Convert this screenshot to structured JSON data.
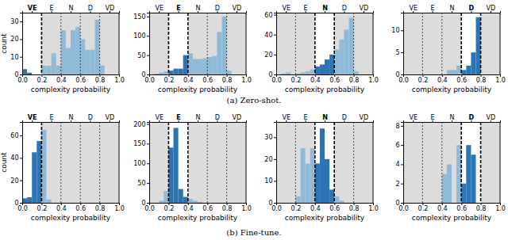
{
  "chart_data": [
    {
      "type": "histogram",
      "highlight": "VE",
      "xlabel": "complexity probability",
      "ylabel": "count",
      "bins": [
        0,
        0.05,
        0.1,
        0.15,
        0.2,
        0.25,
        0.3,
        0.35,
        0.4,
        0.45,
        0.5,
        0.55,
        0.6,
        0.65,
        0.7,
        0.75,
        0.8,
        0.85,
        0.9,
        0.95,
        1
      ],
      "values": [
        3,
        1,
        0,
        0,
        5,
        5,
        12,
        5,
        25,
        15,
        25,
        27,
        20,
        14,
        14,
        31,
        5,
        0,
        0,
        0
      ],
      "colors": [
        "#2a76b4",
        "#2a76b4",
        "#2a76b4",
        "#2a76b4",
        "#8fbbd9",
        "#8fbbd9",
        "#8fbbd9",
        "#8fbbd9",
        "#8fbbd9",
        "#8fbbd9",
        "#8fbbd9",
        "#8fbbd9",
        "#8fbbd9",
        "#8fbbd9",
        "#8fbbd9",
        "#8fbbd9",
        "#8fbbd9",
        "#8fbbd9",
        "#8fbbd9",
        "#8fbbd9"
      ],
      "xlim": [
        0,
        1
      ],
      "xticks": [
        {
          "value": 0,
          "label": "0.0"
        },
        0.2,
        0.4,
        0.6,
        0.8,
        {
          "value": 1,
          "label": "1.0"
        }
      ],
      "ylim": [
        0,
        35
      ],
      "yticks": [
        0,
        10,
        20,
        30
      ],
      "x2ticks": [
        {
          "value": 0.1,
          "label": "VE"
        },
        {
          "value": 0.3,
          "label": "E"
        },
        {
          "value": 0.5,
          "label": "N"
        },
        {
          "value": 0.7,
          "label": "D"
        },
        {
          "value": 0.9,
          "label": "VD"
        }
      ],
      "boundaries": [
        0.2,
        0.4,
        0.6,
        0.8
      ]
    },
    {
      "type": "histogram",
      "highlight": "E",
      "xlabel": "complexity probability",
      "bins": [
        0,
        0.05,
        0.1,
        0.15,
        0.2,
        0.25,
        0.3,
        0.35,
        0.4,
        0.45,
        0.5,
        0.55,
        0.6,
        0.65,
        0.7,
        0.75,
        0.8,
        0.85,
        0.9,
        0.95,
        1
      ],
      "values": [
        0,
        2,
        5,
        8,
        10,
        15,
        15,
        50,
        55,
        40,
        40,
        42,
        45,
        48,
        110,
        150,
        10,
        0,
        0,
        0
      ],
      "colors": [
        "#8fbbd9",
        "#8fbbd9",
        "#8fbbd9",
        "#8fbbd9",
        "#2a76b4",
        "#2a76b4",
        "#2a76b4",
        "#2a76b4",
        "#8fbbd9",
        "#8fbbd9",
        "#8fbbd9",
        "#8fbbd9",
        "#8fbbd9",
        "#8fbbd9",
        "#8fbbd9",
        "#8fbbd9",
        "#8fbbd9",
        "#8fbbd9",
        "#8fbbd9",
        "#8fbbd9"
      ],
      "xlim": [
        0,
        1
      ],
      "xticks": [
        {
          "value": 0,
          "label": "0.0"
        },
        0.2,
        0.4,
        0.6,
        0.8,
        {
          "value": 1,
          "label": "1.0"
        }
      ],
      "ylim": [
        0,
        160
      ],
      "yticks": [
        0,
        50,
        100,
        150
      ],
      "x2ticks": [
        {
          "value": 0.1,
          "label": "VE"
        },
        {
          "value": 0.3,
          "label": "E"
        },
        {
          "value": 0.5,
          "label": "N"
        },
        {
          "value": 0.7,
          "label": "D"
        },
        {
          "value": 0.9,
          "label": "VD"
        }
      ],
      "boundaries": [
        0.2,
        0.4,
        0.6,
        0.8
      ]
    },
    {
      "type": "histogram",
      "highlight": "N",
      "xlabel": "complexity probability",
      "bins": [
        0,
        0.05,
        0.1,
        0.15,
        0.2,
        0.25,
        0.3,
        0.35,
        0.4,
        0.45,
        0.5,
        0.55,
        0.6,
        0.65,
        0.7,
        0.75,
        0.8,
        0.85,
        0.9,
        0.95,
        1
      ],
      "values": [
        0,
        1,
        2,
        0,
        1,
        2,
        3,
        5,
        8,
        10,
        15,
        20,
        25,
        35,
        45,
        57,
        3,
        0,
        0,
        0
      ],
      "colors": [
        "#8fbbd9",
        "#8fbbd9",
        "#8fbbd9",
        "#8fbbd9",
        "#8fbbd9",
        "#8fbbd9",
        "#8fbbd9",
        "#8fbbd9",
        "#2a76b4",
        "#2a76b4",
        "#2a76b4",
        "#2a76b4",
        "#8fbbd9",
        "#8fbbd9",
        "#8fbbd9",
        "#8fbbd9",
        "#8fbbd9",
        "#8fbbd9",
        "#8fbbd9",
        "#8fbbd9"
      ],
      "xlim": [
        0,
        1
      ],
      "xticks": [
        {
          "value": 0,
          "label": "0.0"
        },
        0.2,
        0.4,
        0.6,
        0.8,
        {
          "value": 1,
          "label": "1.0"
        }
      ],
      "ylim": [
        0,
        62
      ],
      "yticks": [
        0,
        20,
        40,
        60
      ],
      "x2ticks": [
        {
          "value": 0.1,
          "label": "VE"
        },
        {
          "value": 0.3,
          "label": "E"
        },
        {
          "value": 0.5,
          "label": "N"
        },
        {
          "value": 0.7,
          "label": "D"
        },
        {
          "value": 0.9,
          "label": "VD"
        }
      ],
      "boundaries": [
        0.2,
        0.4,
        0.6,
        0.8
      ]
    },
    {
      "type": "histogram",
      "highlight": "D",
      "xlabel": "complexity probability",
      "bins": [
        0,
        0.05,
        0.1,
        0.15,
        0.2,
        0.25,
        0.3,
        0.35,
        0.4,
        0.45,
        0.5,
        0.55,
        0.6,
        0.65,
        0.7,
        0.75,
        0.8,
        0.85,
        0.9,
        0.95,
        1
      ],
      "values": [
        0,
        0,
        0,
        0,
        0,
        0,
        0,
        0,
        0,
        1,
        1,
        2,
        1,
        2,
        5,
        13,
        0,
        0,
        0,
        0
      ],
      "colors": [
        "#8fbbd9",
        "#8fbbd9",
        "#8fbbd9",
        "#8fbbd9",
        "#8fbbd9",
        "#8fbbd9",
        "#8fbbd9",
        "#8fbbd9",
        "#8fbbd9",
        "#8fbbd9",
        "#8fbbd9",
        "#8fbbd9",
        "#2a76b4",
        "#2a76b4",
        "#2a76b4",
        "#2a76b4",
        "#8fbbd9",
        "#8fbbd9",
        "#8fbbd9",
        "#8fbbd9"
      ],
      "xlim": [
        0,
        1
      ],
      "xticks": [
        {
          "value": 0,
          "label": "0.0"
        },
        0.2,
        0.4,
        0.6,
        0.8,
        {
          "value": 1,
          "label": "1.0"
        }
      ],
      "ylim": [
        0,
        14
      ],
      "yticks": [
        0,
        5,
        10
      ],
      "x2ticks": [
        {
          "value": 0.1,
          "label": "VE"
        },
        {
          "value": 0.3,
          "label": "E"
        },
        {
          "value": 0.5,
          "label": "N"
        },
        {
          "value": 0.7,
          "label": "D"
        },
        {
          "value": 0.9,
          "label": "VD"
        }
      ],
      "boundaries": [
        0.2,
        0.4,
        0.6,
        0.8
      ]
    },
    {
      "type": "histogram",
      "highlight": "VE",
      "xlabel": "complexity probability",
      "ylabel": "count",
      "bins": [
        0,
        0.05,
        0.1,
        0.15,
        0.2,
        0.25,
        0.3,
        0.35,
        0.4,
        0.45,
        0.5,
        0.55,
        0.6,
        0.65,
        0.7,
        0.75,
        0.8,
        0.85,
        0.9,
        0.95,
        1
      ],
      "values": [
        4,
        5,
        45,
        55,
        65,
        3,
        0,
        0,
        0,
        0,
        0,
        0,
        0,
        0,
        0,
        0,
        0,
        0,
        0,
        0
      ],
      "colors": [
        "#2a76b4",
        "#2a76b4",
        "#2a76b4",
        "#2a76b4",
        "#8fbbd9",
        "#8fbbd9",
        "#8fbbd9",
        "#8fbbd9",
        "#8fbbd9",
        "#8fbbd9",
        "#8fbbd9",
        "#8fbbd9",
        "#8fbbd9",
        "#8fbbd9",
        "#8fbbd9",
        "#8fbbd9",
        "#8fbbd9",
        "#8fbbd9",
        "#8fbbd9",
        "#8fbbd9"
      ],
      "xlim": [
        0,
        1
      ],
      "xticks": [
        {
          "value": 0,
          "label": "0.0"
        },
        0.2,
        0.4,
        0.6,
        0.8,
        {
          "value": 1,
          "label": "1.0"
        }
      ],
      "ylim": [
        0,
        72
      ],
      "yticks": [
        0,
        20,
        40,
        60
      ],
      "x2ticks": [
        {
          "value": 0.1,
          "label": "VE"
        },
        {
          "value": 0.3,
          "label": "E"
        },
        {
          "value": 0.5,
          "label": "N"
        },
        {
          "value": 0.7,
          "label": "D"
        },
        {
          "value": 0.9,
          "label": "VD"
        }
      ],
      "boundaries": [
        0.2,
        0.4,
        0.6,
        0.8
      ]
    },
    {
      "type": "histogram",
      "highlight": "E",
      "xlabel": "complexity probability",
      "bins": [
        0,
        0.05,
        0.1,
        0.15,
        0.2,
        0.25,
        0.3,
        0.35,
        0.4,
        0.45,
        0.5,
        0.55,
        0.6,
        0.65,
        0.7,
        0.75,
        0.8,
        0.85,
        0.9,
        0.95,
        1
      ],
      "values": [
        0,
        0,
        5,
        30,
        140,
        190,
        35,
        15,
        10,
        5,
        2,
        0,
        0,
        0,
        0,
        0,
        0,
        0,
        0,
        0
      ],
      "colors": [
        "#8fbbd9",
        "#8fbbd9",
        "#8fbbd9",
        "#8fbbd9",
        "#2a76b4",
        "#2a76b4",
        "#2a76b4",
        "#2a76b4",
        "#8fbbd9",
        "#8fbbd9",
        "#8fbbd9",
        "#8fbbd9",
        "#8fbbd9",
        "#8fbbd9",
        "#8fbbd9",
        "#8fbbd9",
        "#8fbbd9",
        "#8fbbd9",
        "#8fbbd9",
        "#8fbbd9"
      ],
      "xlim": [
        0,
        1
      ],
      "xticks": [
        {
          "value": 0,
          "label": "0.0"
        },
        0.2,
        0.4,
        0.6,
        0.8,
        {
          "value": 1,
          "label": "1.0"
        }
      ],
      "ylim": [
        0,
        205
      ],
      "yticks": [
        0,
        50,
        100,
        150,
        200
      ],
      "x2ticks": [
        {
          "value": 0.1,
          "label": "VE"
        },
        {
          "value": 0.3,
          "label": "E"
        },
        {
          "value": 0.5,
          "label": "N"
        },
        {
          "value": 0.7,
          "label": "D"
        },
        {
          "value": 0.9,
          "label": "VD"
        }
      ],
      "boundaries": [
        0.2,
        0.4,
        0.6,
        0.8
      ]
    },
    {
      "type": "histogram",
      "highlight": "N",
      "xlabel": "complexity probability",
      "bins": [
        0,
        0.05,
        0.1,
        0.15,
        0.2,
        0.25,
        0.3,
        0.35,
        0.4,
        0.45,
        0.5,
        0.55,
        0.6,
        0.65,
        0.7,
        0.75,
        0.8,
        0.85,
        0.9,
        0.95,
        1
      ],
      "values": [
        0,
        0,
        0,
        0,
        3,
        25,
        18,
        25,
        18,
        34,
        20,
        6,
        3,
        1,
        0,
        0,
        0,
        0,
        0,
        0
      ],
      "colors": [
        "#8fbbd9",
        "#8fbbd9",
        "#8fbbd9",
        "#8fbbd9",
        "#8fbbd9",
        "#8fbbd9",
        "#8fbbd9",
        "#8fbbd9",
        "#2a76b4",
        "#2a76b4",
        "#2a76b4",
        "#2a76b4",
        "#8fbbd9",
        "#8fbbd9",
        "#8fbbd9",
        "#8fbbd9",
        "#8fbbd9",
        "#8fbbd9",
        "#8fbbd9",
        "#8fbbd9"
      ],
      "xlim": [
        0,
        1
      ],
      "xticks": [
        {
          "value": 0,
          "label": "0.0"
        },
        0.2,
        0.4,
        0.6,
        0.8,
        {
          "value": 1,
          "label": "1.0"
        }
      ],
      "ylim": [
        0,
        37
      ],
      "yticks": [
        0,
        10,
        20,
        30
      ],
      "x2ticks": [
        {
          "value": 0.1,
          "label": "VE"
        },
        {
          "value": 0.3,
          "label": "E"
        },
        {
          "value": 0.5,
          "label": "N"
        },
        {
          "value": 0.7,
          "label": "D"
        },
        {
          "value": 0.9,
          "label": "VD"
        }
      ],
      "boundaries": [
        0.2,
        0.4,
        0.6,
        0.8
      ]
    },
    {
      "type": "histogram",
      "highlight": "D",
      "xlabel": "complexity probability",
      "bins": [
        0,
        0.05,
        0.1,
        0.15,
        0.2,
        0.25,
        0.3,
        0.35,
        0.4,
        0.45,
        0.5,
        0.55,
        0.6,
        0.65,
        0.7,
        0.75,
        0.8,
        0.85,
        0.9,
        0.95,
        1
      ],
      "values": [
        0,
        0,
        0,
        0,
        0,
        0,
        0,
        0,
        3,
        4,
        0,
        6,
        2,
        6,
        5,
        0,
        0,
        0,
        0,
        0
      ],
      "colors": [
        "#8fbbd9",
        "#8fbbd9",
        "#8fbbd9",
        "#8fbbd9",
        "#8fbbd9",
        "#8fbbd9",
        "#8fbbd9",
        "#8fbbd9",
        "#8fbbd9",
        "#8fbbd9",
        "#8fbbd9",
        "#8fbbd9",
        "#2a76b4",
        "#2a76b4",
        "#2a76b4",
        "#2a76b4",
        "#8fbbd9",
        "#8fbbd9",
        "#8fbbd9",
        "#8fbbd9"
      ],
      "xlim": [
        0,
        1
      ],
      "xticks": [
        {
          "value": 0,
          "label": "0.0"
        },
        0.2,
        0.4,
        0.6,
        0.8,
        {
          "value": 1,
          "label": "1.0"
        }
      ],
      "ylim": [
        0,
        8.4
      ],
      "yticks": [
        0,
        2,
        4,
        6,
        8
      ],
      "x2ticks": [
        {
          "value": 0.1,
          "label": "VE"
        },
        {
          "value": 0.3,
          "label": "E"
        },
        {
          "value": 0.5,
          "label": "N"
        },
        {
          "value": 0.7,
          "label": "D"
        },
        {
          "value": 0.9,
          "label": "VD"
        }
      ],
      "boundaries": [
        0.2,
        0.4,
        0.6,
        0.8
      ]
    }
  ],
  "captions": [
    "(a) Zero-shot.",
    "(b) Fine-tune."
  ]
}
